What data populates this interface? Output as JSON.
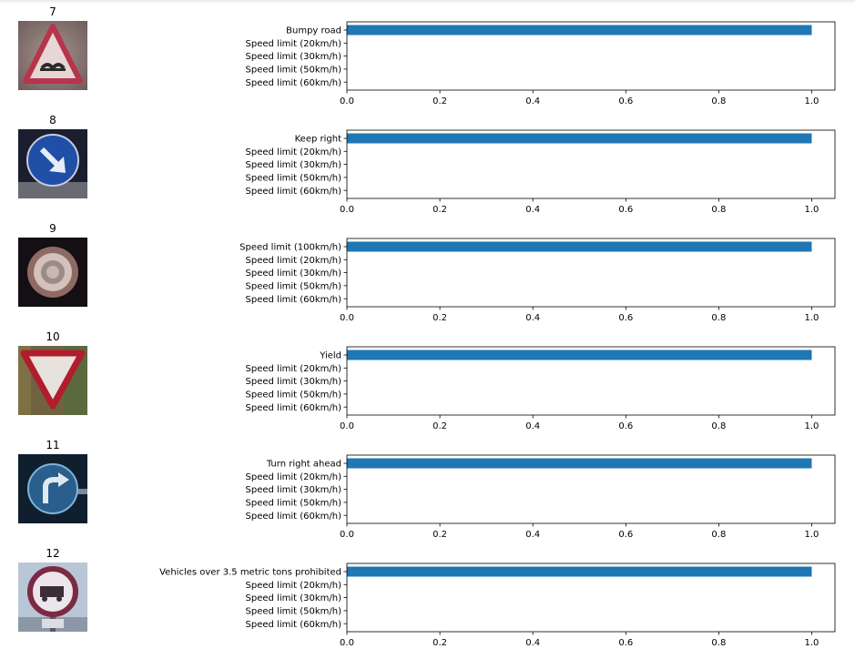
{
  "bar_color": "#1f77b4",
  "image_icons": [
    "bumpy-road-sign-icon",
    "keep-right-sign-icon",
    "speed-limit-100-sign-icon",
    "yield-sign-icon",
    "turn-right-ahead-sign-icon",
    "no-heavy-vehicles-sign-icon"
  ],
  "images": [
    {
      "title": "7"
    },
    {
      "title": "8"
    },
    {
      "title": "9"
    },
    {
      "title": "10"
    },
    {
      "title": "11"
    },
    {
      "title": "12"
    }
  ],
  "chart_data": [
    {
      "type": "bar",
      "orientation": "horizontal",
      "categories": [
        "Bumpy road",
        "Speed limit (20km/h)",
        "Speed limit (30km/h)",
        "Speed limit (50km/h)",
        "Speed limit (60km/h)"
      ],
      "values": [
        1.0,
        0.0,
        0.0,
        0.0,
        0.0
      ],
      "xlim": [
        0,
        1.05
      ],
      "xticks": [
        "0.0",
        "0.2",
        "0.4",
        "0.6",
        "0.8",
        "1.0"
      ]
    },
    {
      "type": "bar",
      "orientation": "horizontal",
      "categories": [
        "Keep right",
        "Speed limit (20km/h)",
        "Speed limit (30km/h)",
        "Speed limit (50km/h)",
        "Speed limit (60km/h)"
      ],
      "values": [
        1.0,
        0.0,
        0.0,
        0.0,
        0.0
      ],
      "xlim": [
        0,
        1.05
      ],
      "xticks": [
        "0.0",
        "0.2",
        "0.4",
        "0.6",
        "0.8",
        "1.0"
      ]
    },
    {
      "type": "bar",
      "orientation": "horizontal",
      "categories": [
        "Speed limit (100km/h)",
        "Speed limit (20km/h)",
        "Speed limit (30km/h)",
        "Speed limit (50km/h)",
        "Speed limit (60km/h)"
      ],
      "values": [
        1.0,
        0.0,
        0.0,
        0.0,
        0.0
      ],
      "xlim": [
        0,
        1.05
      ],
      "xticks": [
        "0.0",
        "0.2",
        "0.4",
        "0.6",
        "0.8",
        "1.0"
      ]
    },
    {
      "type": "bar",
      "orientation": "horizontal",
      "categories": [
        "Yield",
        "Speed limit (20km/h)",
        "Speed limit (30km/h)",
        "Speed limit (50km/h)",
        "Speed limit (60km/h)"
      ],
      "values": [
        1.0,
        0.0,
        0.0,
        0.0,
        0.0
      ],
      "xlim": [
        0,
        1.05
      ],
      "xticks": [
        "0.0",
        "0.2",
        "0.4",
        "0.6",
        "0.8",
        "1.0"
      ]
    },
    {
      "type": "bar",
      "orientation": "horizontal",
      "categories": [
        "Turn right ahead",
        "Speed limit (20km/h)",
        "Speed limit (30km/h)",
        "Speed limit (50km/h)",
        "Speed limit (60km/h)"
      ],
      "values": [
        1.0,
        0.0,
        0.0,
        0.0,
        0.0
      ],
      "xlim": [
        0,
        1.05
      ],
      "xticks": [
        "0.0",
        "0.2",
        "0.4",
        "0.6",
        "0.8",
        "1.0"
      ]
    },
    {
      "type": "bar",
      "orientation": "horizontal",
      "categories": [
        "Vehicles over 3.5 metric tons prohibited",
        "Speed limit (20km/h)",
        "Speed limit (30km/h)",
        "Speed limit (50km/h)",
        "Speed limit (60km/h)"
      ],
      "values": [
        1.0,
        0.0,
        0.0,
        0.0,
        0.0
      ],
      "xlim": [
        0,
        1.05
      ],
      "xticks": [
        "0.0",
        "0.2",
        "0.4",
        "0.6",
        "0.8",
        "1.0"
      ]
    }
  ]
}
